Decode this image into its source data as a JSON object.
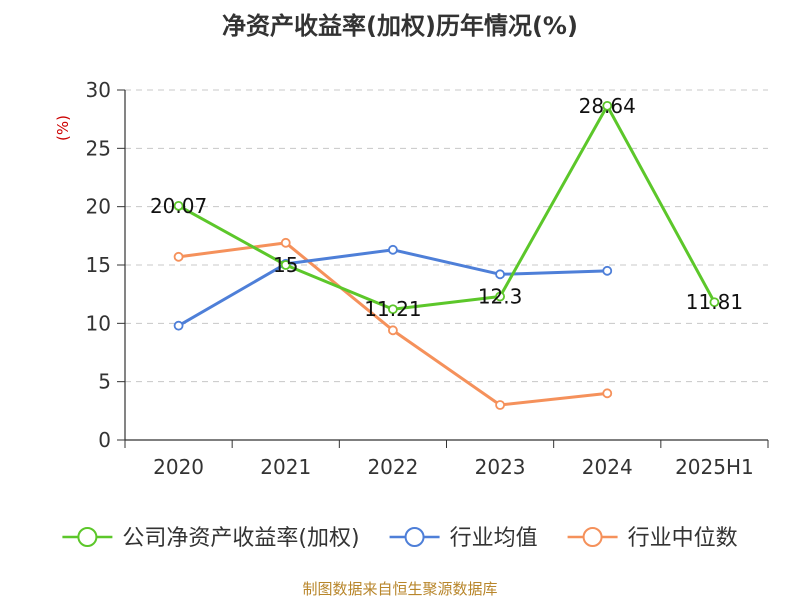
{
  "title": "净资产收益率(加权)历年情况(%)",
  "source": "制图数据来自恒生聚源数据库",
  "chart_data": {
    "type": "line",
    "title": "净资产收益率(加权)历年情况(%)",
    "ylabel": "(%)",
    "ylim": [
      0,
      30
    ],
    "yticks": [
      0,
      5,
      10,
      15,
      20,
      25,
      30
    ],
    "categories": [
      "2020",
      "2021",
      "2022",
      "2023",
      "2024",
      "2025H1"
    ],
    "grid": true,
    "legend_position": "bottom",
    "series": [
      {
        "name": "公司净资产收益率(加权)",
        "color": "#5cc72a",
        "values": [
          20.07,
          15,
          11.21,
          12.3,
          28.64,
          11.81
        ],
        "labels": [
          "20.07",
          "15",
          "11.21",
          "12.3",
          "28.64",
          "11.81"
        ]
      },
      {
        "name": "行业均值",
        "color": "#4e7fd8",
        "values": [
          9.8,
          15.1,
          16.3,
          14.2,
          14.5,
          null
        ]
      },
      {
        "name": "行业中位数",
        "color": "#f5915b",
        "values": [
          15.7,
          16.9,
          9.4,
          3.0,
          4.0,
          null
        ]
      }
    ]
  }
}
